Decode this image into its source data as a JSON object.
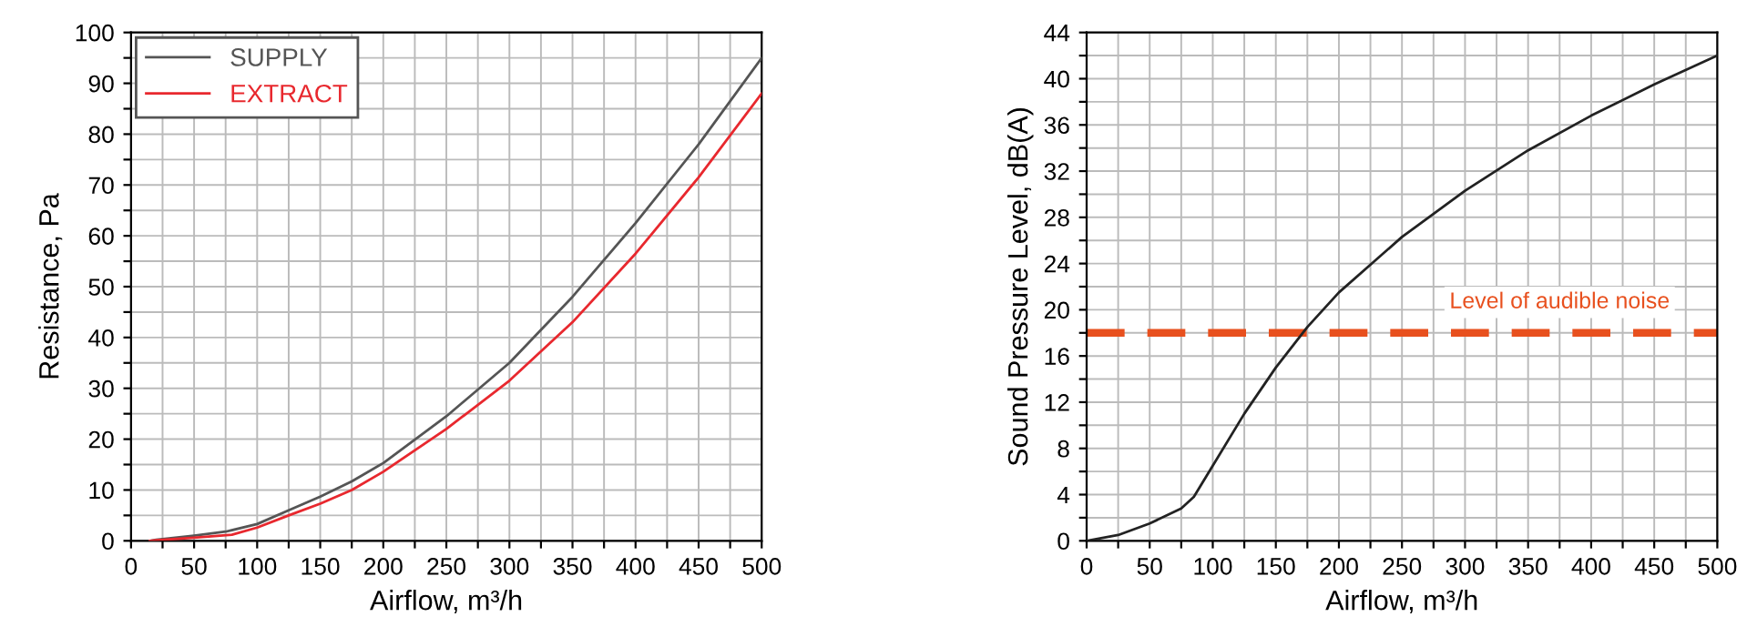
{
  "chart_data": [
    {
      "type": "line",
      "xlabel": "Airflow, m³/h",
      "ylabel": "Resistance, Pa",
      "xlim": [
        0,
        500
      ],
      "ylim": [
        0,
        100
      ],
      "xticks": [
        0,
        {
          "value": 25,
          "label": null
        },
        50,
        {
          "value": 75,
          "label": null
        },
        100,
        {
          "value": 125,
          "label": null
        },
        150,
        {
          "value": 175,
          "label": null
        },
        200,
        {
          "value": 225,
          "label": null
        },
        250,
        {
          "value": 275,
          "label": null
        },
        300,
        {
          "value": 325,
          "label": null
        },
        350,
        {
          "value": 375,
          "label": null
        },
        400,
        {
          "value": 425,
          "label": null
        },
        450,
        {
          "value": 475,
          "label": null
        },
        500
      ],
      "yticks": [
        0,
        {
          "value": 5,
          "label": null
        },
        10,
        {
          "value": 15,
          "label": null
        },
        20,
        {
          "value": 25,
          "label": null
        },
        30,
        {
          "value": 35,
          "label": null
        },
        40,
        {
          "value": 45,
          "label": null
        },
        50,
        {
          "value": 55,
          "label": null
        },
        60,
        {
          "value": 65,
          "label": null
        },
        70,
        {
          "value": 75,
          "label": null
        },
        80,
        {
          "value": 85,
          "label": null
        },
        90,
        {
          "value": 95,
          "label": null
        },
        100
      ],
      "grid": true,
      "legend": "top left",
      "marker": "none",
      "line_style": "solid",
      "series": [
        {
          "name": "SUPPLY",
          "color": "#555555",
          "x": [
            15,
            20,
            50,
            75,
            100,
            125,
            150,
            175,
            200,
            250,
            300,
            350,
            400,
            450,
            500
          ],
          "values": [
            0,
            0.2,
            1,
            1.8,
            3.3,
            6,
            8.7,
            11.7,
            15.3,
            24.5,
            35,
            48,
            62.5,
            78,
            95
          ]
        },
        {
          "name": "EXTRACT",
          "color": "#e8282e",
          "x": [
            15,
            20,
            50,
            80,
            100,
            125,
            150,
            175,
            200,
            250,
            300,
            350,
            400,
            450,
            500
          ],
          "values": [
            0,
            0.1,
            0.6,
            1.2,
            2.6,
            5,
            7.3,
            10,
            13.6,
            22,
            31.5,
            43,
            56.5,
            71.5,
            88
          ]
        }
      ]
    },
    {
      "type": "line",
      "xlabel": "Airflow, m³/h",
      "ylabel": "Sound Pressure Level, dB(A)",
      "xlim": [
        0,
        500
      ],
      "ylim": [
        0,
        44
      ],
      "xticks": [
        0,
        {
          "value": 25,
          "label": null
        },
        50,
        {
          "value": 75,
          "label": null
        },
        100,
        {
          "value": 125,
          "label": null
        },
        150,
        {
          "value": 175,
          "label": null
        },
        200,
        {
          "value": 225,
          "label": null
        },
        250,
        {
          "value": 275,
          "label": null
        },
        300,
        {
          "value": 325,
          "label": null
        },
        350,
        {
          "value": 375,
          "label": null
        },
        400,
        {
          "value": 425,
          "label": null
        },
        450,
        {
          "value": 475,
          "label": null
        },
        500
      ],
      "yticks": [
        0,
        {
          "value": 2,
          "label": null
        },
        4,
        {
          "value": 6,
          "label": null
        },
        8,
        {
          "value": 10,
          "label": null
        },
        12,
        {
          "value": 14,
          "label": null
        },
        16,
        {
          "value": 18,
          "label": null
        },
        20,
        {
          "value": 22,
          "label": null
        },
        24,
        {
          "value": 26,
          "label": null
        },
        28,
        {
          "value": 30,
          "label": null
        },
        32,
        {
          "value": 34,
          "label": null
        },
        36,
        {
          "value": 38,
          "label": null
        },
        40,
        {
          "value": 42,
          "label": null
        },
        44
      ],
      "grid": true,
      "marker": "none",
      "line_style": "solid",
      "series": [
        {
          "color": "#222222",
          "x": [
            0,
            25,
            50,
            75,
            85,
            100,
            125,
            150,
            175,
            200,
            250,
            300,
            350,
            400,
            450,
            500
          ],
          "values": [
            0,
            0.5,
            1.5,
            2.8,
            3.8,
            6.5,
            11,
            15,
            18.5,
            21.5,
            26.3,
            30.3,
            33.8,
            36.8,
            39.5,
            42
          ]
        }
      ],
      "ref_lines": [
        {
          "axis": "y",
          "value": 18,
          "label": "Level of audible noise",
          "color": "#e8501e",
          "line_style": "dashed"
        }
      ]
    }
  ]
}
